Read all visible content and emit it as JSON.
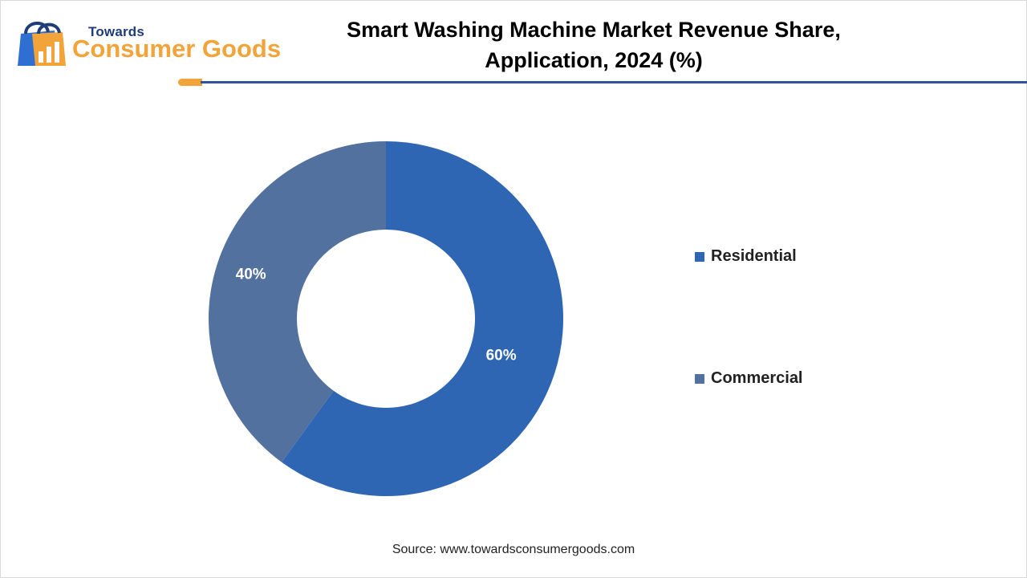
{
  "brand": {
    "top": "Towards",
    "bottom": "Consumer Goods",
    "icon": "shopping-bag-chart-icon",
    "colors": {
      "navy": "#1f3d7a",
      "orange": "#f2a33a",
      "blue": "#2f6fd1"
    }
  },
  "header": {
    "title_line1": "Smart Washing Machine Market Revenue Share,",
    "title_line2": "Application, 2024 (%)"
  },
  "chart_data": {
    "type": "pie",
    "donut": true,
    "title": "Smart Washing Machine Market Revenue Share, Application, 2024 (%)",
    "categories": [
      "Residential",
      "Commercial"
    ],
    "values": [
      60,
      40
    ],
    "labels": [
      "60%",
      "40%"
    ],
    "colors": [
      "#2e66b4",
      "#52719e"
    ],
    "legend": "right"
  },
  "footer": {
    "source": "Source: www.towardsconsumergoods.com"
  }
}
